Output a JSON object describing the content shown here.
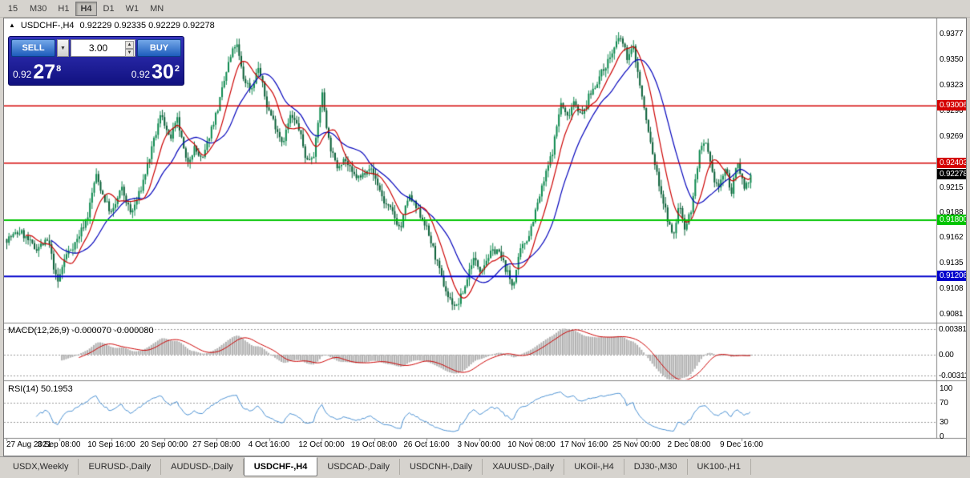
{
  "toolbar": {
    "timeframes": [
      {
        "label": "15",
        "active": false
      },
      {
        "label": "M30",
        "active": false
      },
      {
        "label": "H1",
        "active": false
      },
      {
        "label": "H4",
        "active": true
      },
      {
        "label": "D1",
        "active": false
      },
      {
        "label": "W1",
        "active": false
      },
      {
        "label": "MN",
        "active": false
      }
    ]
  },
  "header": {
    "collapse_icon": "▲",
    "symbol_period": "USDCHF-,H4",
    "ohlc": "0.92229 0.92335 0.92229 0.92278"
  },
  "trade_panel": {
    "sell_label": "SELL",
    "buy_label": "BUY",
    "volume": "3.00",
    "dropdown_icon": "▼",
    "spin_up_icon": "▲",
    "spin_down_icon": "▼",
    "sell_price_small": "0.92",
    "sell_price_big": "27",
    "sell_price_sup": "8",
    "buy_price_small": "0.92",
    "buy_price_big": "30",
    "buy_price_sup": "2"
  },
  "price_axis": {
    "labels": [
      "0.9377",
      "0.9350",
      "0.9323",
      "0.9296",
      "0.9269",
      "0.9242",
      "0.9215",
      "0.9188",
      "0.9162",
      "0.9135",
      "0.9108",
      "0.9081"
    ],
    "badges": [
      {
        "text": "0.93006",
        "color": "#d40000"
      },
      {
        "text": "0.92403",
        "color": "#d40000"
      },
      {
        "text": "0.92278",
        "color": "#000000"
      },
      {
        "text": "0.91800",
        "color": "#00c400"
      },
      {
        "text": "0.91206",
        "color": "#0000cc"
      }
    ]
  },
  "indicators": {
    "macd": {
      "label": "MACD(12,26,9) -0.000070 -0.000080",
      "axis": [
        "0.00381",
        "0.00",
        "-0.00311"
      ]
    },
    "rsi": {
      "label": "RSI(14) 50.1953",
      "axis": [
        "100",
        "70",
        "30",
        "0"
      ]
    }
  },
  "time_axis": {
    "labels": [
      "27 Aug 2021",
      "3 Sep 08:00",
      "10 Sep 16:00",
      "20 Sep 00:00",
      "27 Sep 08:00",
      "4 Oct 16:00",
      "12 Oct 00:00",
      "19 Oct 08:00",
      "26 Oct 16:00",
      "3 Nov 00:00",
      "10 Nov 08:00",
      "17 Nov 16:00",
      "25 Nov 00:00",
      "2 Dec 08:00",
      "9 Dec 16:00"
    ]
  },
  "tabs": {
    "items": [
      {
        "label": "USDX,Weekly",
        "active": false
      },
      {
        "label": "EURUSD-,Daily",
        "active": false
      },
      {
        "label": "AUDUSD-,Daily",
        "active": false
      },
      {
        "label": "USDCHF-,H4",
        "active": true
      },
      {
        "label": "USDCAD-,Daily",
        "active": false
      },
      {
        "label": "USDCNH-,Daily",
        "active": false
      },
      {
        "label": "XAUUSD-,Daily",
        "active": false
      },
      {
        "label": "UKOil-,H4",
        "active": false
      },
      {
        "label": "DJ30-,M30",
        "active": false
      },
      {
        "label": "UK100-,H1",
        "active": false
      }
    ]
  },
  "chart_data": {
    "type": "candlestick",
    "symbol": "USDCHF-",
    "period": "H4",
    "last_price": 0.92278,
    "candle_count": 350,
    "seed": 7,
    "ma_fast_period": 10,
    "ma_slow_period": 22,
    "macd_params": {
      "fast": 12,
      "slow": 26,
      "signal": 9
    },
    "rsi_period": 14,
    "hlines": [
      {
        "price": 0.93006,
        "color": "#d40000",
        "width": 1.5
      },
      {
        "price": 0.92403,
        "color": "#d40000",
        "width": 1.5
      },
      {
        "price": 0.918,
        "color": "#00c400",
        "width": 2
      },
      {
        "price": 0.91206,
        "color": "#0000cc",
        "width": 2
      }
    ],
    "style": {
      "candle_up": "#0f8a50",
      "candle_down": "#0a6038",
      "ma_fast": "#cc0000",
      "ma_slow": "#0000bb",
      "macd_hist": "#b0b0b0",
      "macd_signal": "#cc0000",
      "rsi_line": "#4a90d2",
      "level_dash": "#9a9a9a"
    },
    "price_path": [
      [
        3,
        0.916
      ],
      [
        20,
        0.9168
      ],
      [
        38,
        0.915
      ],
      [
        55,
        0.9158
      ],
      [
        66,
        0.9112
      ],
      [
        76,
        0.9142
      ],
      [
        90,
        0.9158
      ],
      [
        104,
        0.9185
      ],
      [
        114,
        0.9228
      ],
      [
        124,
        0.9204
      ],
      [
        134,
        0.9186
      ],
      [
        146,
        0.9214
      ],
      [
        158,
        0.9186
      ],
      [
        170,
        0.9212
      ],
      [
        183,
        0.9252
      ],
      [
        196,
        0.9294
      ],
      [
        206,
        0.9264
      ],
      [
        216,
        0.9286
      ],
      [
        227,
        0.924
      ],
      [
        237,
        0.9256
      ],
      [
        247,
        0.9242
      ],
      [
        257,
        0.9274
      ],
      [
        267,
        0.93
      ],
      [
        279,
        0.9344
      ],
      [
        289,
        0.9368
      ],
      [
        298,
        0.933
      ],
      [
        308,
        0.9318
      ],
      [
        317,
        0.9342
      ],
      [
        327,
        0.9302
      ],
      [
        337,
        0.9282
      ],
      [
        347,
        0.9262
      ],
      [
        357,
        0.929
      ],
      [
        367,
        0.9278
      ],
      [
        377,
        0.9242
      ],
      [
        387,
        0.9252
      ],
      [
        396,
        0.9316
      ],
      [
        405,
        0.9262
      ],
      [
        414,
        0.9236
      ],
      [
        424,
        0.9246
      ],
      [
        434,
        0.9228
      ],
      [
        444,
        0.9224
      ],
      [
        454,
        0.9238
      ],
      [
        464,
        0.9222
      ],
      [
        474,
        0.9198
      ],
      [
        484,
        0.9188
      ],
      [
        494,
        0.917
      ],
      [
        504,
        0.9206
      ],
      [
        514,
        0.9192
      ],
      [
        524,
        0.9178
      ],
      [
        534,
        0.9152
      ],
      [
        544,
        0.9122
      ],
      [
        554,
        0.9098
      ],
      [
        564,
        0.9088
      ],
      [
        574,
        0.9108
      ],
      [
        584,
        0.914
      ],
      [
        594,
        0.9128
      ],
      [
        604,
        0.9142
      ],
      [
        614,
        0.915
      ],
      [
        624,
        0.9132
      ],
      [
        634,
        0.911
      ],
      [
        644,
        0.9148
      ],
      [
        654,
        0.9164
      ],
      [
        664,
        0.9194
      ],
      [
        674,
        0.9224
      ],
      [
        684,
        0.9254
      ],
      [
        694,
        0.9304
      ],
      [
        702,
        0.9288
      ],
      [
        711,
        0.9308
      ],
      [
        720,
        0.9288
      ],
      [
        729,
        0.931
      ],
      [
        739,
        0.9326
      ],
      [
        749,
        0.9342
      ],
      [
        759,
        0.9358
      ],
      [
        768,
        0.9374
      ],
      [
        777,
        0.9352
      ],
      [
        785,
        0.9362
      ],
      [
        794,
        0.9316
      ],
      [
        804,
        0.927
      ],
      [
        814,
        0.9228
      ],
      [
        824,
        0.9192
      ],
      [
        834,
        0.916
      ],
      [
        842,
        0.9198
      ],
      [
        849,
        0.9172
      ],
      [
        857,
        0.9192
      ],
      [
        867,
        0.9252
      ],
      [
        875,
        0.926
      ],
      [
        883,
        0.9228
      ],
      [
        891,
        0.9214
      ],
      [
        899,
        0.9234
      ],
      [
        907,
        0.921
      ],
      [
        915,
        0.9242
      ],
      [
        923,
        0.9214
      ],
      [
        931,
        0.9228
      ]
    ]
  }
}
